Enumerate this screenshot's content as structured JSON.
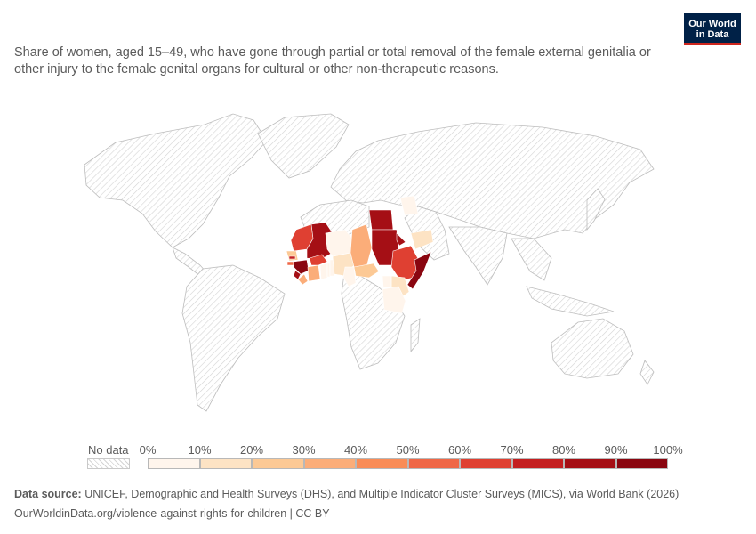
{
  "subtitle": "Share of women, aged 15–49, who have gone through partial or total removal of the female external genitalia or other injury to the female genital organs for cultural or other non-therapeutic reasons.",
  "logo": {
    "line1": "Our World",
    "line2": "in Data"
  },
  "legend": {
    "no_data_label": "No data",
    "ticks": [
      "0%",
      "10%",
      "20%",
      "30%",
      "40%",
      "50%",
      "60%",
      "70%",
      "80%",
      "90%",
      "100%"
    ],
    "colors": [
      "#fff5ec",
      "#fde3c4",
      "#fcc995",
      "#fbad79",
      "#f98c57",
      "#ef6747",
      "#df4032",
      "#c41f20",
      "#a50f15",
      "#8a0610"
    ]
  },
  "footer": {
    "source_label": "Data source:",
    "source_text": "UNICEF, Demographic and Health Surveys (DHS), and Multiple Indicator Cluster Surveys (MICS), via World Bank (2026)",
    "url_text": "OurWorldinData.org/violence-against-rights-for-children | CC BY"
  },
  "countries": [
    {
      "name": "Mauritania",
      "bin": 6
    },
    {
      "name": "Mali",
      "bin": 8
    },
    {
      "name": "Senegal",
      "bin": 2
    },
    {
      "name": "Gambia",
      "bin": 7
    },
    {
      "name": "Guinea-Bissau",
      "bin": 5
    },
    {
      "name": "Guinea",
      "bin": 9
    },
    {
      "name": "Sierra Leone",
      "bin": 8
    },
    {
      "name": "Liberia",
      "bin": 3
    },
    {
      "name": "Cote d'Ivoire",
      "bin": 3
    },
    {
      "name": "Burkina Faso",
      "bin": 6
    },
    {
      "name": "Ghana",
      "bin": 0
    },
    {
      "name": "Togo",
      "bin": 0
    },
    {
      "name": "Benin",
      "bin": 0
    },
    {
      "name": "Nigeria",
      "bin": 1
    },
    {
      "name": "Niger",
      "bin": 0
    },
    {
      "name": "Chad",
      "bin": 3
    },
    {
      "name": "Cameroon",
      "bin": 0
    },
    {
      "name": "Central African Republic",
      "bin": 2
    },
    {
      "name": "Egypt",
      "bin": 8
    },
    {
      "name": "Sudan",
      "bin": 8
    },
    {
      "name": "Eritrea",
      "bin": 8
    },
    {
      "name": "Djibouti",
      "bin": 9
    },
    {
      "name": "Ethiopia",
      "bin": 6
    },
    {
      "name": "Somalia",
      "bin": 9
    },
    {
      "name": "Kenya",
      "bin": 1
    },
    {
      "name": "Tanzania",
      "bin": 0
    },
    {
      "name": "Uganda",
      "bin": 0
    },
    {
      "name": "Yemen",
      "bin": 1
    },
    {
      "name": "Iraq",
      "bin": 0
    }
  ]
}
